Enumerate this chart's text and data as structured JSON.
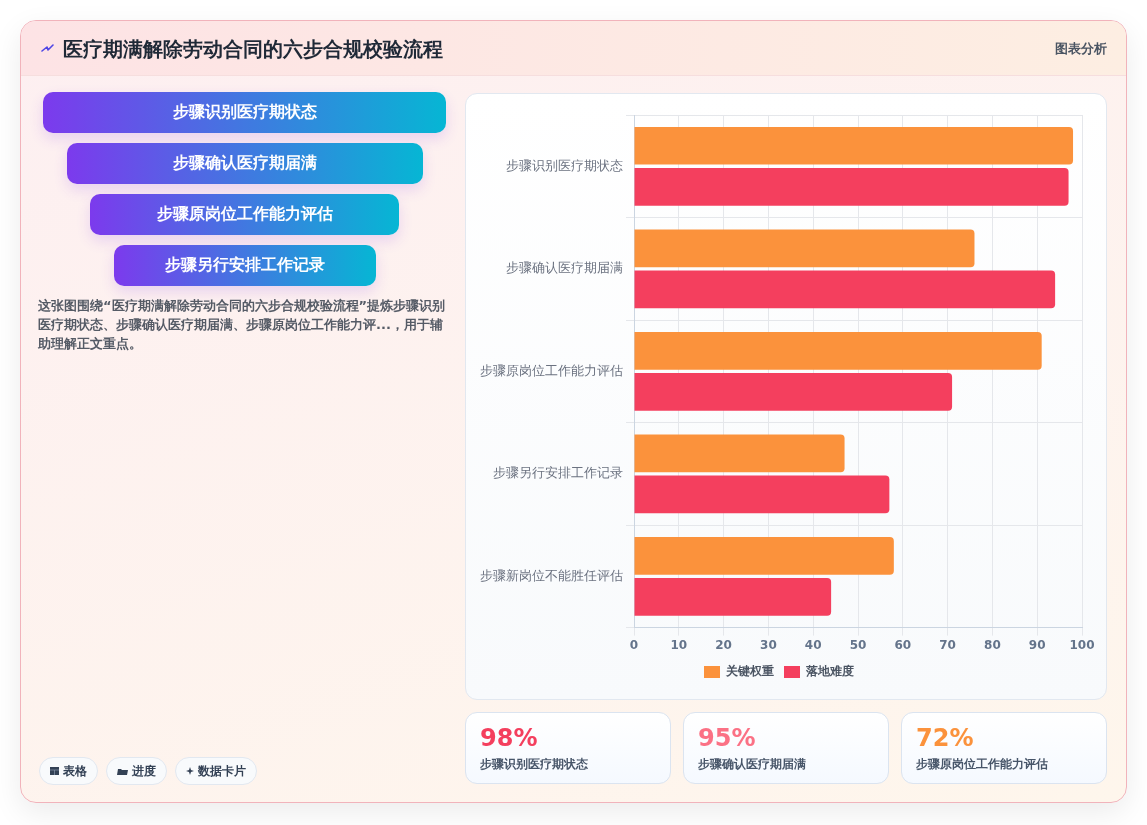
{
  "chart_data": [
    {
      "type": "other",
      "title": "医疗期满解除劳动合同的六步合规校验流程",
      "categories": [
        "步骤识别医疗期状态",
        "步骤确认医疗期届满",
        "步骤原岗位工作能力评估",
        "步骤另行安排工作记录"
      ],
      "annotations": [
        "图表分析",
        "这张图围绕“医疗期满解除劳动合同的六步合规校验流程”提炼步骤识别医疗期状态、步骤确认医疗期届满、步骤原岗位工作能力评...，用于辅助理解正文重点。",
        "表格",
        "进度",
        "数据卡片"
      ]
    },
    {
      "type": "bar",
      "orientation": "horizontal",
      "categories": [
        "步骤识别医疗期状态",
        "步骤确认医疗期届满",
        "步骤原岗位工作能力评估",
        "步骤另行安排工作记录",
        "步骤新岗位不能胜任评估"
      ],
      "series": [
        {
          "name": "关键权重",
          "color": "#fb923c",
          "values": [
            98,
            76,
            91,
            47,
            58
          ]
        },
        {
          "name": "落地难度",
          "color": "#f43f5e",
          "values": [
            97,
            94,
            71,
            57,
            44
          ]
        }
      ],
      "xlim": [
        0,
        100
      ],
      "xticks": [
        0,
        10,
        20,
        30,
        40,
        50,
        60,
        70,
        80,
        90,
        100
      ],
      "grid": true,
      "legend": "bottom"
    },
    {
      "type": "other",
      "annotations": [
        "98%",
        "步骤识别医疗期状态",
        "95%",
        "步骤确认医疗期届满",
        "72%",
        "步骤原岗位工作能力评估"
      ]
    }
  ]
}
